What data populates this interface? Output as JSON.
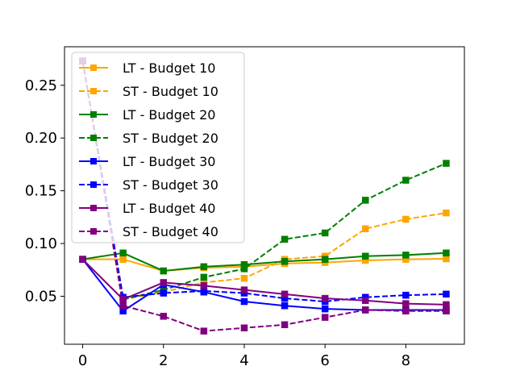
{
  "chart_data": {
    "type": "line",
    "title": "",
    "xlabel": "",
    "ylabel": "",
    "x": [
      0,
      1,
      2,
      3,
      4,
      5,
      6,
      7,
      8,
      9
    ],
    "xlim": [
      -0.45,
      9.45
    ],
    "ylim": [
      0.0045,
      0.2865
    ],
    "xticks": [
      0,
      2,
      4,
      6,
      8
    ],
    "yticks": [
      0.05,
      0.1,
      0.15,
      0.2,
      0.25
    ],
    "xtick_labels": [
      "0",
      "2",
      "4",
      "6",
      "8"
    ],
    "ytick_labels": [
      "0.05",
      "0.10",
      "0.15",
      "0.20",
      "0.25"
    ],
    "grid": false,
    "legend_position": "upper-left",
    "marker": "square",
    "series": [
      {
        "name": "LT - Budget 10",
        "color": "#ffa500",
        "linestyle": "solid",
        "values": [
          0.085,
          0.085,
          0.074,
          0.077,
          0.078,
          0.081,
          0.082,
          0.084,
          0.085,
          0.0855
        ]
      },
      {
        "name": "ST - Budget 10",
        "color": "#ffa500",
        "linestyle": "dashed",
        "values": [
          0.273,
          0.047,
          0.054,
          0.063,
          0.067,
          0.085,
          0.088,
          0.114,
          0.123,
          0.129
        ]
      },
      {
        "name": "LT - Budget 20",
        "color": "#008000",
        "linestyle": "solid",
        "values": [
          0.085,
          0.091,
          0.074,
          0.078,
          0.08,
          0.083,
          0.085,
          0.088,
          0.089,
          0.091
        ]
      },
      {
        "name": "ST - Budget 20",
        "color": "#008000",
        "linestyle": "dashed",
        "values": [
          0.273,
          0.047,
          0.056,
          0.068,
          0.076,
          0.104,
          0.11,
          0.141,
          0.16,
          0.176
        ]
      },
      {
        "name": "LT - Budget 30",
        "color": "#0000ff",
        "linestyle": "solid",
        "values": [
          0.085,
          0.036,
          0.061,
          0.054,
          0.045,
          0.041,
          0.038,
          0.037,
          0.037,
          0.037
        ]
      },
      {
        "name": "ST - Budget 30",
        "color": "#0000ff",
        "linestyle": "dashed",
        "values": [
          0.273,
          0.049,
          0.053,
          0.055,
          0.053,
          0.048,
          0.045,
          0.049,
          0.051,
          0.052
        ]
      },
      {
        "name": "LT - Budget 40",
        "color": "#800080",
        "linestyle": "solid",
        "values": [
          0.085,
          0.047,
          0.063,
          0.06,
          0.056,
          0.052,
          0.048,
          0.046,
          0.043,
          0.042
        ]
      },
      {
        "name": "ST - Budget 40",
        "color": "#800080",
        "linestyle": "dashed",
        "values": [
          0.273,
          0.041,
          0.031,
          0.017,
          0.02,
          0.023,
          0.03,
          0.037,
          0.036,
          0.036
        ]
      }
    ]
  }
}
